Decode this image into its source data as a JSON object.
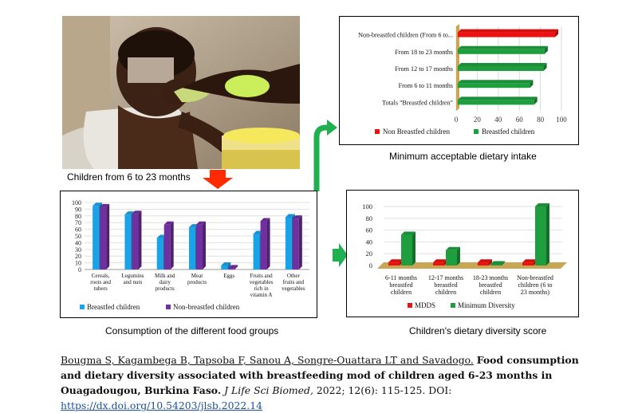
{
  "photo_caption": "Children from 6 to 23 months",
  "captions": {
    "top_right": "Minimum acceptable dietary intake",
    "bottom_left": "Consumption of the different food groups",
    "bottom_right": "Children's dietary diversity score"
  },
  "citation": {
    "authors": "Bougma S, Kagambega B, Tapsoba F, Sanou A, Songre-Ouattara LT and Savadogo.",
    "title": "Food consumption and dietary diversity associated with breastfeeding mod of children aged 6-23 months in Ouagadougou, Burkina Faso.",
    "journal": "J Life Sci Biomed,",
    "details": "2022; 12(6): 115-125. DOI:",
    "doi_link": "https://dx.doi.org/10.54203/jlsb.2022.14"
  },
  "colors": {
    "red_arrow": "#ff2a00",
    "green_arrow": "#1fb050",
    "breastfed_blue": "#1aa3e8",
    "nonbreastfed_purple": "#7030a0",
    "chart_green": "#1e9e3e",
    "chart_red": "#ee1111",
    "floor": "#c8a656"
  },
  "chart_data": [
    {
      "type": "bar",
      "orientation": "horizontal",
      "categories": [
        "Non-breastfed children (From 6 to...",
        "From 18 to 23 months",
        "From 12 to 17 months",
        "From 6 to 11 months",
        "Totals \"Breastfed children\""
      ],
      "series": [
        {
          "name": "Non Breastfed children",
          "values": [
            94,
            0,
            0,
            0,
            0
          ]
        },
        {
          "name": "Breastfed children",
          "values": [
            0,
            84,
            83,
            70,
            74
          ]
        }
      ],
      "xlim": [
        0,
        100
      ],
      "xticks": [
        "0",
        "20",
        "40",
        "60",
        "80",
        "100"
      ],
      "legend": "bottom"
    },
    {
      "type": "bar",
      "categories": [
        "Cereals, roots and tubers",
        "Legumins and nuts",
        "Milk and dairy products",
        "Meat products",
        "Eggs",
        "Fruits and vegetables rich in vitamin A",
        "Other fruits and vegetables"
      ],
      "series": [
        {
          "name": "Breastfed children",
          "values": [
            95,
            82,
            47,
            63,
            6,
            53,
            78
          ]
        },
        {
          "name": "Non-breastfed children",
          "values": [
            93,
            83,
            67,
            67,
            2,
            72,
            76
          ]
        }
      ],
      "ylim": [
        0,
        100
      ],
      "yticks": [
        "0",
        "10",
        "20",
        "30",
        "40",
        "50",
        "60",
        "70",
        "80",
        "90",
        "100"
      ],
      "legend": "bottom"
    },
    {
      "type": "bar",
      "categories": [
        "6-11 months breastfed children",
        "12-17 months breastfed children",
        "18-23 months breastfed children",
        "Non-breastfed children (6 to 23 months)"
      ],
      "series": [
        {
          "name": "MDDS",
          "values": [
            5,
            5,
            5,
            5
          ]
        },
        {
          "name": "Minimum Diversity",
          "values": [
            52,
            26,
            2,
            100
          ]
        }
      ],
      "ylim": [
        0,
        100
      ],
      "yticks": [
        "0",
        "20",
        "40",
        "60",
        "80",
        "100"
      ],
      "legend": "bottom"
    }
  ]
}
